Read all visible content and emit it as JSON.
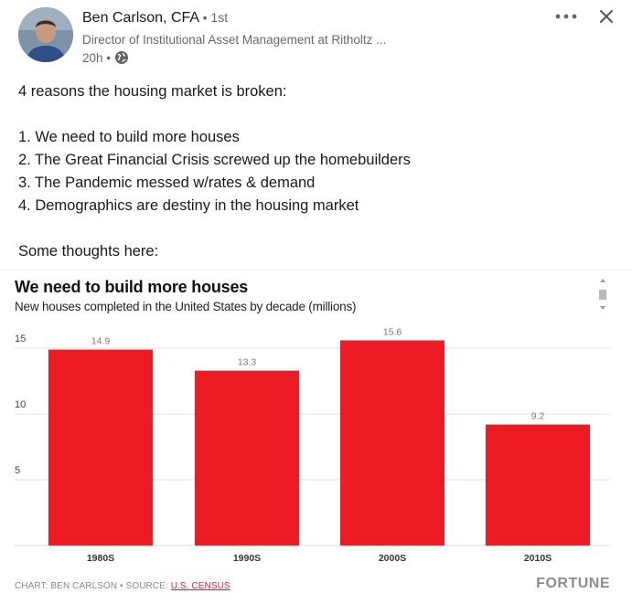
{
  "author": {
    "name": "Ben Carlson, CFA",
    "degree": "• 1st",
    "headline": "Director of Institutional Asset Management at Ritholtz ...",
    "time": "20h •"
  },
  "icons": {
    "more": "more-horizontal-icon",
    "close": "close-icon",
    "visibility": "globe-icon"
  },
  "post": {
    "lines": [
      "4 reasons the housing market is broken:",
      "",
      "1. We need to build more houses",
      "2. The Great Financial Crisis screwed up the homebuilders",
      "3. The Pandemic messed w/rates & demand",
      "4. Demographics are destiny in the housing market",
      "",
      "Some thoughts here:"
    ]
  },
  "chart_data": {
    "type": "bar",
    "title": "We need to build more houses",
    "subtitle": "New houses completed in the United States by decade (millions)",
    "categories": [
      "1980S",
      "1990S",
      "2000S",
      "2010S"
    ],
    "values": [
      14.9,
      13.3,
      15.6,
      9.2
    ],
    "data_labels": [
      "14.9",
      "13.3",
      "15.6",
      "9.2"
    ],
    "yticks": [
      5,
      10,
      15
    ],
    "ytick_labels": [
      "5",
      "10",
      "15"
    ],
    "ylim": [
      0,
      16.4
    ],
    "grid": true,
    "bar_color": "#ed1c24",
    "credit_prefix": "CHART: BEN CARLSON • SOURCE: ",
    "credit_link": "U.S. CENSUS",
    "brand": "FORTUNE"
  }
}
